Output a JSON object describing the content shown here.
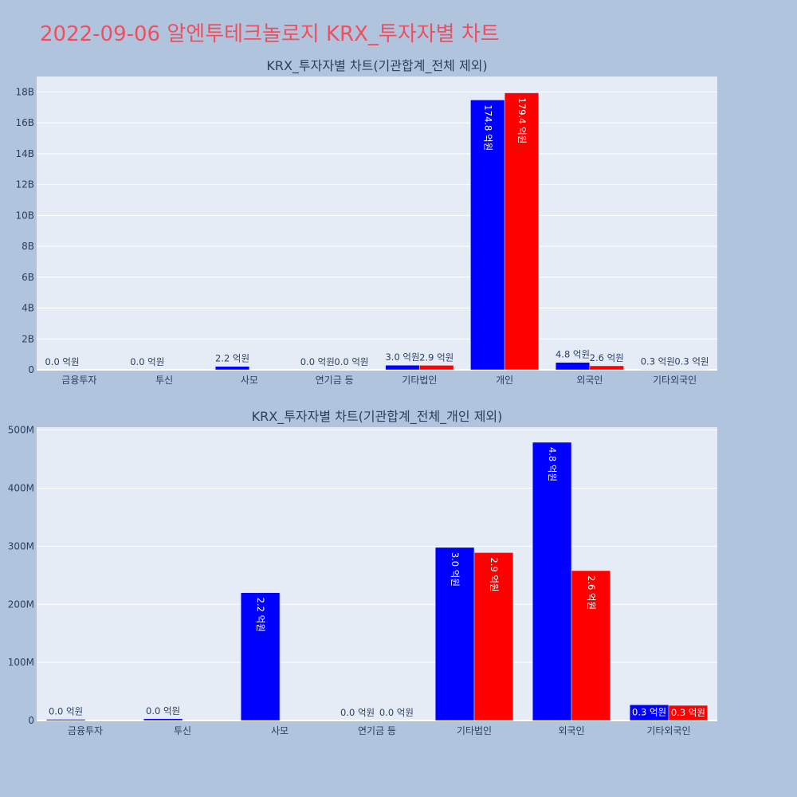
{
  "page": {
    "title": "2022-09-06 알엔투테크놀로지 KRX_투자자별 차트"
  },
  "colors": {
    "series1": "#0000ff",
    "series2": "#ff0000",
    "plot_bg": "#e5ecf6",
    "page_bg": "#b0c4de",
    "title": "#ef4f5f"
  },
  "chart_data": [
    {
      "type": "bar",
      "title": "KRX_투자자별 차트(기관합계_전체 제외)",
      "categories": [
        "금융투자",
        "투신",
        "사모",
        "연기금 등",
        "기타법인",
        "개인",
        "외국인",
        "기타외국인"
      ],
      "series": [
        {
          "values": [
            0.0,
            0.0,
            220000000,
            0.0,
            298000000,
            17480000000,
            479000000,
            27000000
          ],
          "labels": [
            "0.0 억원",
            "0.0 억원",
            "2.2 억원",
            "0.0 억원",
            "3.0 억원",
            "174.8 억원",
            "4.8 억원",
            "0.3 억원"
          ]
        },
        {
          "values": [
            0.0,
            0.0,
            0.0,
            0.0,
            289000000,
            17940000000,
            258000000,
            26000000
          ],
          "labels": [
            "",
            "",
            "",
            "0.0 억원",
            "2.9 억원",
            "179.4 억원",
            "2.6 억원",
            "0.3 억원"
          ]
        }
      ],
      "ylim": [
        0,
        19000000000
      ],
      "yticks": [
        0,
        2000000000,
        4000000000,
        6000000000,
        8000000000,
        10000000000,
        12000000000,
        14000000000,
        16000000000,
        18000000000
      ],
      "yticklabels": [
        "0",
        "2B",
        "4B",
        "6B",
        "8B",
        "10B",
        "12B",
        "14B",
        "16B",
        "18B"
      ],
      "grid": true
    },
    {
      "type": "bar",
      "title": "KRX_투자자별 차트(기관합계_전체_개인 제외)",
      "categories": [
        "금융투자",
        "투신",
        "사모",
        "연기금 등",
        "기타법인",
        "외국인",
        "기타외국인"
      ],
      "series": [
        {
          "values": [
            2000000,
            3000000,
            220000000,
            0.0,
            298000000,
            479000000,
            27000000
          ],
          "labels": [
            "0.0 억원",
            "0.0 억원",
            "2.2 억원",
            "0.0 억원",
            "3.0 억원",
            "4.8 억원",
            "0.3 억원"
          ]
        },
        {
          "values": [
            0.0,
            0.0,
            0.0,
            0.0,
            289000000,
            258000000,
            26000000
          ],
          "labels": [
            "",
            "",
            "",
            "0.0 억원",
            "2.9 억원",
            "2.6 억원",
            "0.3 억원"
          ]
        }
      ],
      "ylim": [
        0,
        505000000
      ],
      "yticks": [
        0,
        100000000,
        200000000,
        300000000,
        400000000,
        500000000
      ],
      "yticklabels": [
        "0",
        "100M",
        "200M",
        "300M",
        "400M",
        "500M"
      ],
      "grid": true
    }
  ]
}
